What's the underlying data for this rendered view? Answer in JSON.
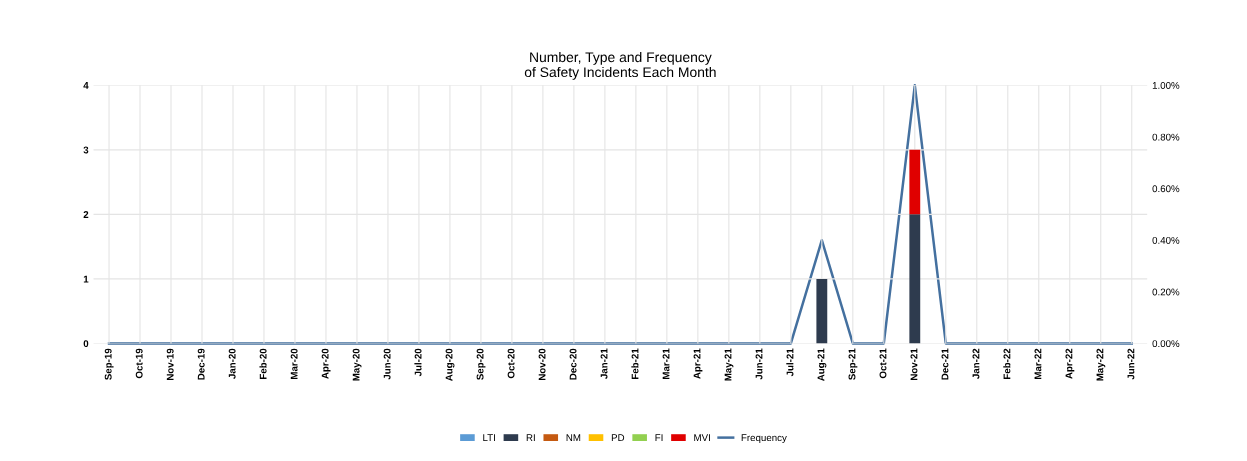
{
  "chart_data": {
    "type": "bar",
    "stacked": true,
    "title": "Number, Type and Frequency\nof Safety Incidents Each Month",
    "categories": [
      "Sep-19",
      "Oct-19",
      "Nov-19",
      "Dec-19",
      "Jan-20",
      "Feb-20",
      "Mar-20",
      "Apr-20",
      "May-20",
      "Jun-20",
      "Jul-20",
      "Aug-20",
      "Sep-20",
      "Oct-20",
      "Nov-20",
      "Dec-20",
      "Jan-21",
      "Feb-21",
      "Mar-21",
      "Apr-21",
      "May-21",
      "Jun-21",
      "Jul-21",
      "Aug-21",
      "Sep-21",
      "Oct-21",
      "Nov-21",
      "Dec-21",
      "Jan-22",
      "Feb-22",
      "Mar-22",
      "Apr-22",
      "May-22",
      "Jun-22"
    ],
    "series": [
      {
        "name": "LTI",
        "color": "#5b9bd5",
        "values": [
          0,
          0,
          0,
          0,
          0,
          0,
          0,
          0,
          0,
          0,
          0,
          0,
          0,
          0,
          0,
          0,
          0,
          0,
          0,
          0,
          0,
          0,
          0,
          0,
          0,
          0,
          0,
          0,
          0,
          0,
          0,
          0,
          0,
          0
        ]
      },
      {
        "name": "RI",
        "color": "#2e3b4e",
        "values": [
          0,
          0,
          0,
          0,
          0,
          0,
          0,
          0,
          0,
          0,
          0,
          0,
          0,
          0,
          0,
          0,
          0,
          0,
          0,
          0,
          0,
          0,
          0,
          1,
          0,
          0,
          2,
          0,
          0,
          0,
          0,
          0,
          0,
          0
        ]
      },
      {
        "name": "NM",
        "color": "#c55a11",
        "values": [
          0,
          0,
          0,
          0,
          0,
          0,
          0,
          0,
          0,
          0,
          0,
          0,
          0,
          0,
          0,
          0,
          0,
          0,
          0,
          0,
          0,
          0,
          0,
          0,
          0,
          0,
          0,
          0,
          0,
          0,
          0,
          0,
          0,
          0
        ]
      },
      {
        "name": "PD",
        "color": "#ffc000",
        "values": [
          0,
          0,
          0,
          0,
          0,
          0,
          0,
          0,
          0,
          0,
          0,
          0,
          0,
          0,
          0,
          0,
          0,
          0,
          0,
          0,
          0,
          0,
          0,
          0,
          0,
          0,
          0,
          0,
          0,
          0,
          0,
          0,
          0,
          0
        ]
      },
      {
        "name": "FI",
        "color": "#92d050",
        "values": [
          0,
          0,
          0,
          0,
          0,
          0,
          0,
          0,
          0,
          0,
          0,
          0,
          0,
          0,
          0,
          0,
          0,
          0,
          0,
          0,
          0,
          0,
          0,
          0,
          0,
          0,
          0,
          0,
          0,
          0,
          0,
          0,
          0,
          0
        ]
      },
      {
        "name": "MVI",
        "color": "#e00000",
        "values": [
          0,
          0,
          0,
          0,
          0,
          0,
          0,
          0,
          0,
          0,
          0,
          0,
          0,
          0,
          0,
          0,
          0,
          0,
          0,
          0,
          0,
          0,
          0,
          0,
          0,
          0,
          1,
          0,
          0,
          0,
          0,
          0,
          0,
          0
        ]
      },
      {
        "name": "Frequency",
        "type": "line",
        "axis": "y2",
        "color": "#44709f",
        "values": [
          0,
          0,
          0,
          0,
          0,
          0,
          0,
          0,
          0,
          0,
          0,
          0,
          0,
          0,
          0,
          0,
          0,
          0,
          0,
          0,
          0,
          0,
          0,
          0.4,
          0,
          0,
          1.0,
          0,
          0,
          0,
          0,
          0,
          0,
          0
        ]
      }
    ],
    "ylim": [
      0,
      4
    ],
    "yticks": [
      0,
      1,
      2,
      3,
      4
    ],
    "y2lim": [
      0,
      1.0
    ],
    "y2ticks": [
      {
        "value": 0,
        "label": "0.00%"
      },
      {
        "value": 0.2,
        "label": "0.20%"
      },
      {
        "value": 0.4,
        "label": "0.40%"
      },
      {
        "value": 0.6,
        "label": "0.60%"
      },
      {
        "value": 0.8,
        "label": "0.80%"
      },
      {
        "value": 1.0,
        "label": "1.00%"
      }
    ],
    "grid": true,
    "legend": "bottom"
  }
}
